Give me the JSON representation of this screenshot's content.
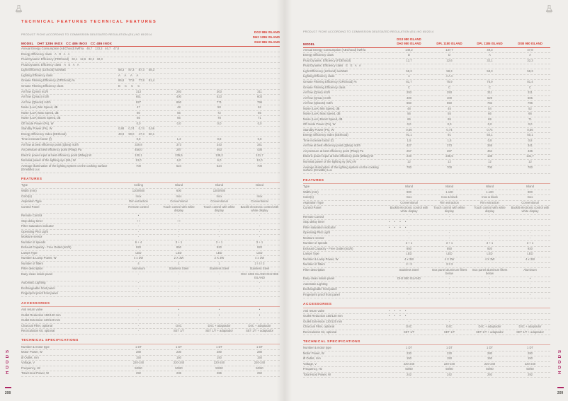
{
  "colors": {
    "accent_red": "#d63a2f",
    "model_dark_red": "#b2282c",
    "side_magenta": "#ad2363",
    "page_background": "#f0eeeb",
    "body_text_gray": "#74726f"
  },
  "icons": {
    "corner_icon": "hood-icon"
  },
  "page_left": {
    "page_number": "208",
    "side_label": "HOODS",
    "title": "TECHNICAL FEATURES TECHNICAL FEATURES",
    "subtitle": "PRODUCT FICHE ACCORDING TO COMMISSION DELEGATED REGULATION (EU) NO 65/2014",
    "model_label": "MODEL",
    "models_inline": "DHT 1286 INOX   CC 486 INOX   CC 486 INOX",
    "model_stack": [
      "DG2 986 ISLAND",
      "DH2 1286 ISLAND",
      "DH2 986 ISLAND"
    ],
    "fiche_rows": [
      {
        "label": "Annual Energy Consumption (AEChood) kWh/a",
        "inline": "46,7 133,3 46,7 47,8"
      },
      {
        "label": "Energy Efficiency class",
        "inline": "A D A A"
      },
      {
        "label": "Fluid Dynamic Efficiency (FDEhood)",
        "inline": "32,1 12,6 32,2 32,3"
      },
      {
        "label": "Fluid Dynamic Efficiency class",
        "inline": "A E A A"
      },
      {
        "label": "Light Efficiency (LEhood) lux/Watt",
        "group": "58,3 87,3 87,3 58,3"
      },
      {
        "label": "Lighting Efficiency class",
        "group": "A A A A"
      },
      {
        "label": "Grease Filtering Efficiency (GFEhood) %",
        "group": "86,8 77,8 77,8 81,4"
      },
      {
        "label": "Grease Filtering Efficiency class",
        "group": "B C C C"
      },
      {
        "label": "Air flow (Qmin) m3/h",
        "cols": [
          "313",
          "293",
          "303",
          "311"
        ]
      },
      {
        "label": "Air flow (Qmax) m3/h",
        "cols": [
          "651",
          "400",
          "523",
          "603"
        ]
      },
      {
        "label": "Air flow (Qboost) m3/h",
        "cols": [
          "827",
          "650",
          "771",
          "796"
        ]
      },
      {
        "label": "Noise (LwA) Min Speed, dB",
        "cols": [
          "47",
          "48",
          "50",
          "52"
        ]
      },
      {
        "label": "Noise (LwA) Max Speed, dB",
        "cols": [
          "60",
          "56",
          "72",
          "66"
        ]
      },
      {
        "label": "Noise (LwA) Boost Speed, dB",
        "cols": [
          "66",
          "66",
          "78",
          "71"
        ]
      },
      {
        "label": "Off mode Power (Po), W",
        "cols": [
          "0,0",
          "0,0",
          "0,0",
          "0,0"
        ]
      },
      {
        "label": "Standby Power (Ps), W",
        "group": "0,88 0,74 0,74 0,56"
      },
      {
        "label": "Energy Efficiency Index (EEIhood)",
        "group": "49,9 90,0 47,3 50,1"
      },
      {
        "label": "Time increase factor (f)",
        "cols": [
          "0,8",
          "1,3",
          "0,8",
          "0,8"
        ]
      },
      {
        "label": "Air flow at best efficiency point (Qbep) m3/h",
        "cols": [
          "329,8",
          "373",
          "343",
          "341"
        ]
      },
      {
        "label": "Air pressure at best efficiency point (Pbep) Pa",
        "cols": [
          "456,0",
          "287",
          "463",
          "436"
        ]
      },
      {
        "label": "Electric power input at best efficiency point (Wbep) W",
        "cols": [
          "130,1",
          "235,5",
          "138,2",
          "131,7"
        ]
      },
      {
        "label": "Nominal power of the lighting sys (WL) W",
        "cols": [
          "13,0",
          "6,0",
          "6,0",
          "12,0"
        ]
      },
      {
        "label": "Average illumination of the lighting system on the cooking surface (Emiddle) Lux",
        "cols": [
          "700",
          "524",
          "524",
          "700"
        ]
      }
    ],
    "features": {
      "header": "FEATURES",
      "rows": [
        {
          "label": "Type",
          "cols": [
            "Ceiling",
            "Island",
            "Island",
            "Island"
          ]
        },
        {
          "label": "Width (mm)",
          "cols": [
            "1200/600",
            "600",
            "1200/900",
            ""
          ]
        },
        {
          "label": "Color(s)",
          "cols": [
            "Inox",
            "Inox",
            "Inox",
            "Inox"
          ]
        },
        {
          "label": "Aspiration Type",
          "cols": [
            "Rim extraction",
            "Conventional",
            "Conventional",
            "Conventional"
          ]
        },
        {
          "label": "Control Panel",
          "cols": [
            "Remote control",
            "Touch control with white display",
            "Touch control with white display",
            "Backlit electronic control with white display"
          ]
        },
        {
          "label": "Remote Control",
          "cols": [
            "•",
            "-",
            "-",
            "-"
          ]
        },
        {
          "label": "Stop delay timer",
          "cols": [
            "• •",
            "• •",
            "",
            ""
          ]
        },
        {
          "label": "Filter saturation indicator",
          "cols": [
            "-",
            "-",
            "-",
            "-"
          ]
        },
        {
          "label": "Operating Pilot Light",
          "cols": [
            "-",
            "-",
            "-",
            "-"
          ]
        },
        {
          "label": "Moisture sensor",
          "cols": [
            "-",
            "-",
            "-",
            "-"
          ]
        },
        {
          "label": "Number of speeds",
          "cols": [
            "6 + 4",
            "3 + 1",
            "3 + 1",
            "3 + 1"
          ]
        },
        {
          "label": "Exhaust Capacity - Free Outlet (m3/h)",
          "cols": [
            "920",
            "850",
            "920",
            "920"
          ]
        },
        {
          "label": "Lamps Type",
          "cols": [
            "LED",
            "LED",
            "LED",
            "LED"
          ]
        },
        {
          "label": "Number & Lamp Power, W",
          "cols": [
            "4 x 3W",
            "2 X 3W",
            "2 X 3W",
            "4 x 3W"
          ]
        },
        {
          "label": "Number of filters",
          "cols": [
            "4",
            "1",
            "1",
            "2 / 4 / 3"
          ]
        },
        {
          "label": "Filter description",
          "cols": [
            "Aluminum",
            "Stainless Steel",
            "Stainless Steel",
            "Stainless Steel"
          ]
        },
        {
          "label": "Easy-clean inside panel",
          "cols": [
            "-",
            "-",
            "-",
            "DH2 1286 ISLAND DH2 986 ISLAND"
          ]
        },
        {
          "label": "Automatic Lighting",
          "cols": [
            "-",
            "-",
            "-",
            "-"
          ]
        },
        {
          "label": "Exchangeable front panel",
          "cols": [
            "-",
            "-",
            "-",
            "-"
          ]
        },
        {
          "label": "Fingerprint proof front panel",
          "cols": [
            "-",
            "-",
            "-",
            "-"
          ]
        }
      ]
    },
    "accessories": {
      "header": "ACCESSORIES",
      "rows": [
        {
          "label": "Anti return valve",
          "cols": [
            "-",
            "•",
            "•",
            "•"
          ]
        },
        {
          "label": "Outlet Reduction 150/120 mm",
          "cols": [
            "-",
            "•",
            "•",
            "•"
          ]
        },
        {
          "label": "Outlet Extension 120/120 mm",
          "cols": [
            "-",
            "-",
            "-",
            "-"
          ]
        },
        {
          "label": "Charcoal Filter, optional",
          "cols": [
            "-",
            "D4C",
            "D4C + adaptador",
            "D4C + adaptador"
          ]
        },
        {
          "label": "Recirculation Kit, optional",
          "cols": [
            "-",
            "SET 1/T",
            "SET 1/T + adaptador",
            "SET 1/T + adaptador"
          ]
        }
      ]
    },
    "tech_specs": {
      "header": "TECHNICAL SPECIFICATIONS",
      "rows": [
        {
          "label": "Number & motor type",
          "cols": [
            "1 DT",
            "1 DT",
            "1 DT",
            "1 DT"
          ]
        },
        {
          "label": "Motor Power, W",
          "cols": [
            "280",
            "230",
            "280",
            "280"
          ]
        },
        {
          "label": "Ø Outlet, mm",
          "cols": [
            "150",
            "150",
            "150",
            "150"
          ]
        },
        {
          "label": "Voltage, V",
          "cols": [
            "220-240",
            "220-240",
            "220-240",
            "220-240"
          ]
        },
        {
          "label": "Frequency, Hz",
          "cols": [
            "50/60",
            "50/60",
            "50/60",
            "50/60"
          ]
        },
        {
          "label": "Total Hood Power, W",
          "cols": [
            "292",
            "236",
            "286",
            "292"
          ]
        }
      ]
    }
  },
  "page_right": {
    "page_number": "209",
    "side_label": "HOODS",
    "subtitle": "PRODUCT FICHE ACCORDING TO COMMISSION DELEGATED REGULATION (EU) NO 65/2014",
    "model_label": "MODEL",
    "model_cols": [
      "DG3 980 ISLAND\nDH2 980 ISLAND",
      "DPL 1180 ISLAND",
      "DPL 1185 ISLAND",
      "DSB 980 ISLAND"
    ],
    "fiche_rows": [
      {
        "label": "Annual Energy Consumption (AEChood) kWh/a",
        "cols": [
          "140,2",
          "137,7",
          "49,3",
          "47,8"
        ]
      },
      {
        "label": "Energy Efficiency class",
        "cols": [
          "D",
          "D",
          "A",
          "A"
        ]
      },
      {
        "label": "Fluid Dynamic Efficiency (FDEhood)",
        "cols": [
          "12,7",
          "12,6",
          "32,1",
          "32,3"
        ]
      },
      {
        "label": "Fluid Dynamic Efficiency class",
        "inline": "E E A A"
      },
      {
        "label": "Light Efficiency (LEhood) lux/Watt",
        "cols": [
          "58,3",
          "58,3",
          "58,3",
          "58,3"
        ]
      },
      {
        "label": "Lighting Efficiency class",
        "cols": [
          "A",
          "A A A",
          "",
          ""
        ]
      },
      {
        "label": "Grease Filtering Efficiency (GFEhood) %",
        "cols": [
          "81,7",
          "75,9",
          "75,9",
          "81,4"
        ]
      },
      {
        "label": "Grease Filtering Efficiency class",
        "cols": [
          "C",
          "C",
          "C",
          "C"
        ]
      },
      {
        "label": "Air flow (Qmin) m3/h",
        "cols": [
          "293",
          "293",
          "311",
          "311"
        ]
      },
      {
        "label": "Air flow (Qmax) m3/h",
        "cols": [
          "400",
          "400",
          "629",
          "605"
        ]
      },
      {
        "label": "Air flow (Qboost) m3/h",
        "cols": [
          "650",
          "650",
          "782",
          "796"
        ]
      },
      {
        "label": "Noise (LwA) Min Speed, dB",
        "cols": [
          "48",
          "45",
          "54",
          "52"
        ]
      },
      {
        "label": "Noise (LwA) Max Speed, dB",
        "cols": [
          "56",
          "55",
          "66",
          "66"
        ]
      },
      {
        "label": "Noise (LwA) Boost Speed, dB",
        "cols": [
          "66",
          "65",
          "69",
          "71"
        ]
      },
      {
        "label": "Off mode Power (Po), W",
        "cols": [
          "0,0",
          "0,0",
          "0,0",
          "0,0"
        ]
      },
      {
        "label": "Standby Power (Ps), W",
        "cols": [
          "0,56",
          "0,74",
          "0,74",
          "0,56"
        ]
      },
      {
        "label": "Energy Efficiency Index (EEIhood)",
        "cols": [
          "91,1",
          "91",
          "50,1",
          "50,1"
        ]
      },
      {
        "label": "Time increase factor (f)",
        "cols": [
          "1,5",
          "1,5",
          "0,8",
          "0,8"
        ]
      },
      {
        "label": "Air flow at best efficiency point (Qbep) m3/h",
        "cols": [
          "427",
          "373",
          "346",
          "341"
        ]
      },
      {
        "label": "Air pressure at best efficiency point (Pbep) Pa",
        "cols": [
          "257",
          "287",
          "464",
          "436"
        ]
      },
      {
        "label": "Electric power input at best efficiency point (Wbep) W",
        "cols": [
          "240",
          "235,5",
          "138",
          "131,7"
        ]
      },
      {
        "label": "Nominal power of the lighting sy (WL) W",
        "cols": [
          "12",
          "12",
          "12",
          "12"
        ]
      },
      {
        "label": "Average illumination of the lighting system on the cooking surface (Emiddle) Lux",
        "cols": [
          "700",
          "700",
          "700",
          "700"
        ]
      }
    ],
    "features": {
      "header": "FEATURES",
      "rows": [
        {
          "label": "Type",
          "cols": [
            "Island",
            "Island",
            "Island",
            "Island"
          ]
        },
        {
          "label": "Width (mm)",
          "cols": [
            "900",
            "1.100",
            "1.100",
            "900"
          ]
        },
        {
          "label": "Color(s)",
          "cols": [
            "Inox",
            "Inox & black",
            "Inox & black",
            "Inox"
          ]
        },
        {
          "label": "Aspiration Type",
          "cols": [
            "Conventional",
            "Rim extraction",
            "Rim extraction",
            "Conventional"
          ]
        },
        {
          "label": "Control Panel",
          "cols": [
            "Backlit electronic control with white display",
            "Touch control with white display",
            "Touch control with white display",
            "Backlit electronic control with white display"
          ]
        },
        {
          "label": "Remote Control",
          "cols": [
            "-",
            "-",
            "-",
            "-"
          ]
        },
        {
          "label": "Stop delay timer",
          "group": "• • • •"
        },
        {
          "label": "Filter saturation indicator",
          "group": "• • • •"
        },
        {
          "label": "Operating Pilot Light",
          "cols": [
            "-",
            "-",
            "-",
            "-"
          ]
        },
        {
          "label": "Moisture sensor",
          "cols": [
            "-",
            "-",
            "-",
            "-"
          ]
        },
        {
          "label": "Number of speeds",
          "cols": [
            "3 + 1",
            "3 + 1",
            "3 + 1",
            "3 + 1"
          ]
        },
        {
          "label": "Exhaust Capacity - Free Outlet (m3/h)",
          "cols": [
            "850",
            "850",
            "920",
            "920"
          ]
        },
        {
          "label": "Lamps Type",
          "cols": [
            "LED",
            "LED",
            "LED",
            "LED"
          ]
        },
        {
          "label": "Number & Lamp Power, W",
          "cols": [
            "4 x 3W",
            "4 X 3W",
            "4 X 3W",
            "4 x 3W"
          ]
        },
        {
          "label": "Number of filters",
          "cols": [
            "2 / 3",
            "3 3 3",
            "",
            ""
          ]
        },
        {
          "label": "Filter description",
          "cols": [
            "Stainless Steel",
            "Inox panel aluminum filters below",
            "Inox panel aluminum filters below",
            "Aluminum"
          ]
        },
        {
          "label": "Easy-clean inside panel",
          "cols": [
            "DH2 980 ISLAND",
            "-",
            "-",
            "•"
          ]
        },
        {
          "label": "Automatic Lighting",
          "cols": [
            "-",
            "-",
            "-",
            "-"
          ]
        },
        {
          "label": "Exchangeable front panel",
          "cols": [
            "-",
            "-",
            "-",
            "-"
          ]
        },
        {
          "label": "Fingerprint proof front panel",
          "cols": [
            "-",
            "-",
            "-",
            "-"
          ]
        }
      ]
    },
    "accessories": {
      "header": "ACCESSORIES",
      "rows": [
        {
          "label": "Anti return valve",
          "group": "• • • •"
        },
        {
          "label": "Outlet Reduction 150/120 mm",
          "group": "• • • •"
        },
        {
          "label": "Outlet Extension 120/120 mm",
          "cols": [
            "-",
            "-",
            "-",
            "-"
          ]
        },
        {
          "label": "Charcoal Filter, optional",
          "cols": [
            "D4C",
            "D4C",
            "D4C + adaptador",
            "D4C + adaptador"
          ]
        },
        {
          "label": "Recirculation Kit, optional",
          "cols": [
            "SET 1/T",
            "SET 1/T",
            "SET 1/T + adaptador",
            "SET 1/T + adaptador"
          ]
        }
      ]
    },
    "tech_specs": {
      "header": "TECHNICAL SPECIFICATIONS",
      "rows": [
        {
          "label": "Number & motor type",
          "cols": [
            "1 DT",
            "1 DT",
            "1 DT",
            "1 DT"
          ]
        },
        {
          "label": "Motor Power, W",
          "cols": [
            "230",
            "230",
            "280",
            "280"
          ]
        },
        {
          "label": "Ø Outlet, mm",
          "cols": [
            "150",
            "150",
            "150",
            "150"
          ]
        },
        {
          "label": "Voltage, V",
          "cols": [
            "220-240",
            "220-240",
            "220-240",
            "220-240"
          ]
        },
        {
          "label": "Frequency, Hz",
          "cols": [
            "50/60",
            "50/60",
            "50/60",
            "50/60"
          ]
        },
        {
          "label": "Total Hood Power, W",
          "cols": [
            "242",
            "242",
            "292",
            "292"
          ]
        }
      ]
    }
  }
}
